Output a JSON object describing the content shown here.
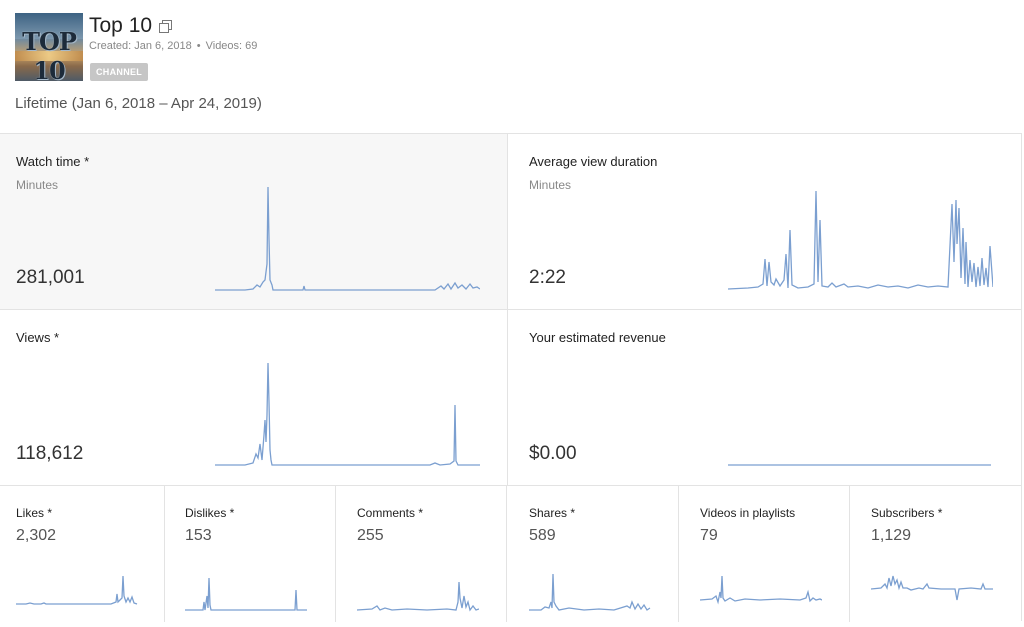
{
  "channel": {
    "title": "Top 10",
    "created_label": "Created: Jan 6, 2018",
    "videos_label": "Videos: 69",
    "badge": "CHANNEL",
    "thumbnail_text": "TOP 10"
  },
  "period": "Lifetime (Jan 6, 2018 – Apr 24, 2019)",
  "cards": {
    "watch_time": {
      "title": "Watch time *",
      "subtitle": "Minutes",
      "value": "281,001"
    },
    "avg_view_duration": {
      "title": "Average view duration",
      "subtitle": "Minutes",
      "value": "2:22"
    },
    "views": {
      "title": "Views *",
      "value": "118,612"
    },
    "revenue": {
      "title": "Your estimated revenue",
      "value": "$0.00"
    }
  },
  "small_cards": [
    {
      "title": "Likes *",
      "value": "2,302"
    },
    {
      "title": "Dislikes *",
      "value": "153"
    },
    {
      "title": "Comments *",
      "value": "255"
    },
    {
      "title": "Shares *",
      "value": "589"
    },
    {
      "title": "Videos in playlists",
      "value": "79"
    },
    {
      "title": "Subscribers *",
      "value": "1,129"
    }
  ],
  "colors": {
    "sparkline": "#7b9fd0",
    "selected_card_bg": "#f7f7f7",
    "badge_bg": "#c6c6c6"
  },
  "icons": {
    "title_link": "external-link-icon"
  }
}
